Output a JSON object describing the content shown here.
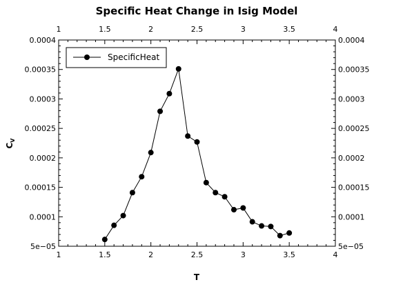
{
  "chart_data": {
    "type": "line",
    "title": "Specific Heat Change in Isig Model",
    "xlabel": "T",
    "ylabel": "C",
    "ylabel_subscript": "V",
    "xlim": [
      1,
      4
    ],
    "ylim": [
      5e-05,
      0.0004
    ],
    "x_ticks": [
      1,
      1.5,
      2,
      2.5,
      3,
      3.5,
      4
    ],
    "x_tick_labels": [
      "1",
      "1.5",
      "2",
      "2.5",
      "3",
      "3.5",
      "4"
    ],
    "y_ticks": [
      5e-05,
      0.0001,
      0.00015,
      0.0002,
      0.00025,
      0.0003,
      0.00035,
      0.0004
    ],
    "y_tick_labels": [
      "5e−05",
      "0.0001",
      "0.00015",
      "0.0002",
      "0.00025",
      "0.0003",
      "0.00035",
      "0.0004"
    ],
    "legend_position": "top-left",
    "series": [
      {
        "name": "SpecificHeat",
        "color": "#000000",
        "marker": "circle",
        "x": [
          1.5,
          1.6,
          1.7,
          1.8,
          1.9,
          2.0,
          2.1,
          2.2,
          2.3,
          2.4,
          2.5,
          2.6,
          2.7,
          2.8,
          2.9,
          3.0,
          3.1,
          3.2,
          3.3,
          3.4,
          3.5
        ],
        "y": [
          6.15e-05,
          8.55e-05,
          0.000102,
          0.000141,
          0.000168,
          0.000209,
          0.000279,
          0.000309,
          0.000351,
          0.000237,
          0.000227,
          0.000158,
          0.000141,
          0.000134,
          0.000112,
          0.000115,
          9.15e-05,
          8.45e-05,
          8.35e-05,
          6.8e-05,
          7.25e-05
        ]
      }
    ]
  }
}
